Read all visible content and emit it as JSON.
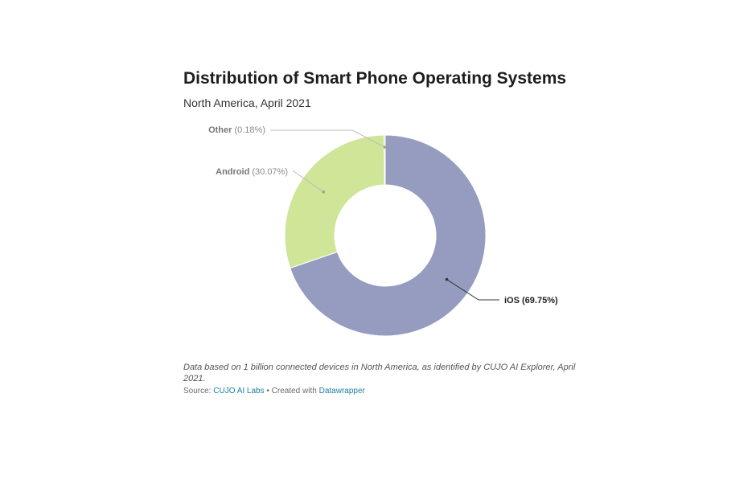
{
  "header": {
    "title": "Distribution of Smart Phone Operating Systems",
    "subtitle": "North America, April 2021"
  },
  "chart_data": {
    "type": "pie",
    "variant": "donut",
    "slices": [
      {
        "name": "iOS",
        "value": 69.75,
        "label": "iOS (69.75%)",
        "color": "#959cc0"
      },
      {
        "name": "Android",
        "value": 30.07,
        "label": "Android (30.07%)",
        "color": "#cfe597"
      },
      {
        "name": "Other",
        "value": 0.18,
        "label": "Other (0.18%)",
        "color": "#b9b9b9"
      }
    ]
  },
  "footer": {
    "notes": "Data based on 1 billion connected devices in North America, as identified by CUJO AI Explorer, April 2021.",
    "source_prefix": "Source: ",
    "source_name": "CUJO AI Labs",
    "separator": " • Created with ",
    "tool_name": "Datawrapper"
  }
}
